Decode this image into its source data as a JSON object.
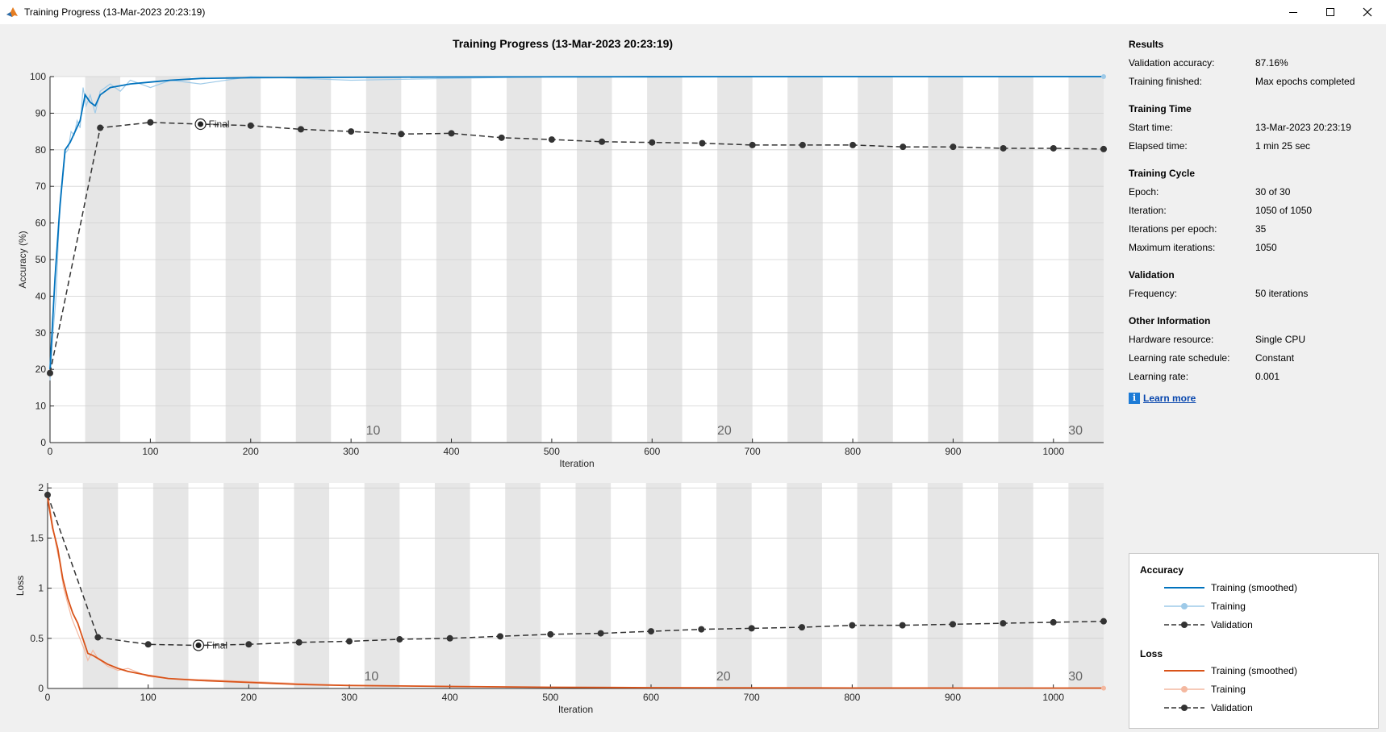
{
  "window": {
    "title": "Training Progress (13-Mar-2023 20:23:19)",
    "icon": "matlab-icon",
    "controls": [
      "minimize-icon",
      "maximize-icon",
      "close-icon"
    ]
  },
  "figure_title": "Training Progress (13-Mar-2023 20:23:19)",
  "results": {
    "heading": "Results",
    "rows": [
      {
        "k": "Validation accuracy:",
        "v": "87.16%"
      },
      {
        "k": "Training finished:",
        "v": "Max epochs completed"
      }
    ]
  },
  "time": {
    "heading": "Training Time",
    "rows": [
      {
        "k": "Start time:",
        "v": "13-Mar-2023 20:23:19"
      },
      {
        "k": "Elapsed time:",
        "v": "1 min 25 sec"
      }
    ]
  },
  "cycle": {
    "heading": "Training Cycle",
    "rows": [
      {
        "k": "Epoch:",
        "v": "30 of 30"
      },
      {
        "k": "Iteration:",
        "v": "1050 of 1050"
      },
      {
        "k": "Iterations per epoch:",
        "v": "35"
      },
      {
        "k": "Maximum iterations:",
        "v": "1050"
      }
    ]
  },
  "validation": {
    "heading": "Validation",
    "rows": [
      {
        "k": "Frequency:",
        "v": "50 iterations"
      }
    ]
  },
  "other": {
    "heading": "Other Information",
    "rows": [
      {
        "k": "Hardware resource:",
        "v": "Single CPU"
      },
      {
        "k": "Learning rate schedule:",
        "v": "Constant"
      },
      {
        "k": "Learning rate:",
        "v": "0.001"
      }
    ]
  },
  "learn_more": "Learn more",
  "legend": {
    "accuracy_heading": "Accuracy",
    "loss_heading": "Loss",
    "training_smoothed": "Training (smoothed)",
    "training": "Training",
    "validation": "Validation"
  },
  "colors": {
    "acc_smoothed": "#0072bd",
    "acc_raw": "#9ecae8",
    "loss_smoothed": "#d95319",
    "loss_raw": "#f4b8a0",
    "validation": "#333333",
    "epoch_band": "#e6e6e6"
  },
  "chart_data": [
    {
      "type": "line",
      "title": "",
      "xlabel": "Iteration",
      "ylabel": "Accuracy (%)",
      "xlim": [
        0,
        1050
      ],
      "ylim": [
        0,
        100
      ],
      "xticks": [
        0,
        100,
        200,
        300,
        400,
        500,
        600,
        700,
        800,
        900,
        1000
      ],
      "yticks": [
        0,
        10,
        20,
        30,
        40,
        50,
        60,
        70,
        80,
        90,
        100
      ],
      "epoch_labels": [
        {
          "x": 322,
          "label": "10"
        },
        {
          "x": 672,
          "label": "20"
        },
        {
          "x": 1022,
          "label": "30"
        }
      ],
      "epochs": 30,
      "iterations_per_epoch": 35,
      "final_marker": {
        "x": 150,
        "y": 87,
        "label": "Final"
      },
      "series": [
        {
          "name": "Training (smoothed)",
          "x": [
            0,
            5,
            10,
            15,
            20,
            25,
            30,
            35,
            40,
            45,
            50,
            55,
            60,
            70,
            80,
            100,
            120,
            150,
            200,
            300,
            400,
            600,
            800,
            1050
          ],
          "y": [
            20,
            45,
            65,
            80,
            82,
            85,
            88,
            95,
            93,
            92,
            95,
            96,
            97,
            97.5,
            98,
            98.5,
            99,
            99.5,
            99.7,
            99.8,
            99.9,
            99.95,
            100,
            100
          ]
        },
        {
          "name": "Training",
          "x": [
            0,
            3,
            6,
            9,
            12,
            15,
            18,
            21,
            24,
            27,
            30,
            33,
            36,
            40,
            45,
            50,
            55,
            60,
            70,
            80,
            100,
            120,
            150,
            200,
            300,
            500,
            800,
            1050
          ],
          "y": [
            17,
            30,
            40,
            60,
            70,
            79,
            80,
            85,
            84,
            88,
            86,
            97,
            92,
            95,
            90,
            96,
            97,
            98,
            96,
            99,
            97,
            99,
            98,
            100,
            99,
            100,
            100,
            100
          ]
        },
        {
          "name": "Validation",
          "x": [
            0,
            50,
            100,
            150,
            200,
            250,
            300,
            350,
            400,
            450,
            500,
            550,
            600,
            650,
            700,
            750,
            800,
            850,
            900,
            950,
            1000,
            1050
          ],
          "y": [
            19,
            86,
            87.5,
            87,
            86.6,
            85.6,
            85,
            84.3,
            84.5,
            83.3,
            82.8,
            82.2,
            82,
            81.8,
            81.3,
            81.3,
            81.3,
            80.8,
            80.8,
            80.4,
            80.4,
            80.2
          ]
        }
      ]
    },
    {
      "type": "line",
      "title": "",
      "xlabel": "Iteration",
      "ylabel": "Loss",
      "xlim": [
        0,
        1050
      ],
      "ylim": [
        0,
        2.05
      ],
      "xticks": [
        0,
        100,
        200,
        300,
        400,
        500,
        600,
        700,
        800,
        900,
        1000
      ],
      "yticks": [
        0,
        0.5,
        1,
        1.5,
        2
      ],
      "ytick_labels": [
        "0",
        "0.5",
        "1",
        "1.5",
        "2"
      ],
      "epoch_labels": [
        {
          "x": 322,
          "label": "10"
        },
        {
          "x": 672,
          "label": "20"
        },
        {
          "x": 1022,
          "label": "30"
        }
      ],
      "epochs": 30,
      "iterations_per_epoch": 35,
      "final_marker": {
        "x": 150,
        "y": 0.43,
        "label": "Final"
      },
      "series": [
        {
          "name": "Training (smoothed)",
          "x": [
            0,
            5,
            10,
            15,
            20,
            25,
            30,
            35,
            40,
            45,
            50,
            60,
            70,
            80,
            100,
            120,
            150,
            200,
            250,
            300,
            400,
            500,
            600,
            800,
            1050
          ],
          "y": [
            1.9,
            1.6,
            1.4,
            1.1,
            0.9,
            0.75,
            0.65,
            0.5,
            0.35,
            0.33,
            0.3,
            0.24,
            0.2,
            0.17,
            0.13,
            0.1,
            0.08,
            0.06,
            0.04,
            0.03,
            0.02,
            0.012,
            0.008,
            0.005,
            0.004
          ]
        },
        {
          "name": "Training",
          "x": [
            0,
            4,
            8,
            12,
            16,
            20,
            24,
            28,
            32,
            36,
            40,
            45,
            50,
            60,
            70,
            80,
            100,
            120,
            150,
            200,
            300,
            500,
            800,
            1050
          ],
          "y": [
            1.95,
            1.7,
            1.45,
            1.25,
            1.0,
            0.85,
            0.7,
            0.6,
            0.5,
            0.4,
            0.28,
            0.38,
            0.3,
            0.22,
            0.18,
            0.2,
            0.12,
            0.1,
            0.09,
            0.07,
            0.03,
            0.01,
            0.005,
            0.003
          ]
        },
        {
          "name": "Validation",
          "x": [
            0,
            50,
            100,
            150,
            200,
            250,
            300,
            350,
            400,
            450,
            500,
            550,
            600,
            650,
            700,
            750,
            800,
            850,
            900,
            950,
            1000,
            1050
          ],
          "y": [
            1.93,
            0.51,
            0.44,
            0.43,
            0.44,
            0.46,
            0.47,
            0.49,
            0.5,
            0.52,
            0.54,
            0.55,
            0.57,
            0.59,
            0.6,
            0.61,
            0.63,
            0.63,
            0.64,
            0.65,
            0.66,
            0.67
          ]
        }
      ]
    }
  ]
}
